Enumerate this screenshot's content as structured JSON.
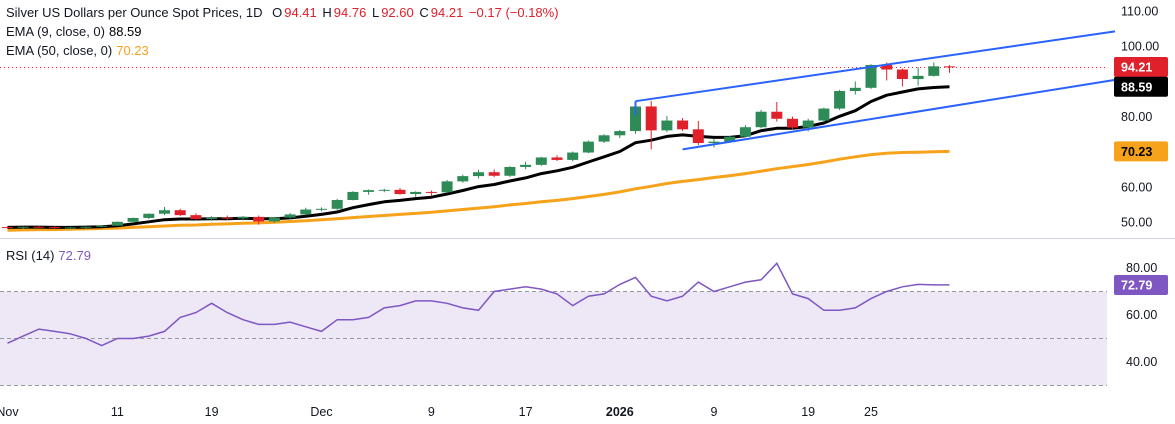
{
  "legend": {
    "title": "Silver US Dollars per Ounce Spot Prices, 1D",
    "o_label": "O",
    "o": "94.41",
    "h_label": "H",
    "h": "94.76",
    "l_label": "L",
    "l": "92.60",
    "c_label": "C",
    "c": "94.21",
    "change": "−0.17 (−0.18%)",
    "ema9_label": "EMA (9, close, 0)",
    "ema9_value": "88.59",
    "ema50_label": "EMA (50, close, 0)",
    "ema50_value": "70.23",
    "rsi_label": "RSI (14)",
    "rsi_value": "72.79"
  },
  "colors": {
    "up": "#26a69a",
    "up_candle": "#2e8b57",
    "down": "#e0202a",
    "ema9": "#000000",
    "ema50": "#f7a21b",
    "channel": "#2962ff",
    "rsi": "#7e57c2",
    "rsi_band": "#ede7f6"
  },
  "price_tags": {
    "last": "94.21",
    "ema9": "88.59",
    "ema50": "70.23"
  },
  "chart_data": {
    "type": "candlestick",
    "title": "Silver US Dollars per Ounce Spot Prices, 1D",
    "price_axis": {
      "ticks": [
        "110.00",
        "100.00",
        "80.00",
        "70.00",
        "60.00",
        "50.00"
      ],
      "tick_values": [
        110,
        100,
        80,
        70,
        60,
        50
      ]
    },
    "rsi_axis": {
      "ticks": [
        "80.00",
        "60.00",
        "40.00"
      ],
      "tick_values": [
        80,
        60,
        40
      ],
      "bands": [
        70,
        50,
        30
      ]
    },
    "x_axis": {
      "labels": [
        "Nov",
        "11",
        "19",
        "Dec",
        "9",
        "17",
        "2026",
        "9",
        "19",
        "25"
      ],
      "label_index": [
        0,
        7,
        13,
        20,
        27,
        33,
        39,
        45,
        51,
        55
      ]
    },
    "candles": [
      [
        48.7,
        48.9,
        48.3,
        48.6
      ],
      [
        48.6,
        48.9,
        48.3,
        48.8
      ],
      [
        48.8,
        49.0,
        48.5,
        48.7
      ],
      [
        48.7,
        48.9,
        48.3,
        48.5
      ],
      [
        48.5,
        48.8,
        48.2,
        48.6
      ],
      [
        48.6,
        48.9,
        48.3,
        48.8
      ],
      [
        48.8,
        49.3,
        48.6,
        49.1
      ],
      [
        49.1,
        50.3,
        49.0,
        50.2
      ],
      [
        50.2,
        51.4,
        49.8,
        51.3
      ],
      [
        51.3,
        52.6,
        51.0,
        52.5
      ],
      [
        52.5,
        54.4,
        52.1,
        53.5
      ],
      [
        53.5,
        53.9,
        51.9,
        52.1
      ],
      [
        52.1,
        52.6,
        50.8,
        51.0
      ],
      [
        51.0,
        51.8,
        50.5,
        51.4
      ],
      [
        51.4,
        52.0,
        50.8,
        51.2
      ],
      [
        51.2,
        51.8,
        50.6,
        51.6
      ],
      [
        51.6,
        52.0,
        49.4,
        50.3
      ],
      [
        50.3,
        51.6,
        49.9,
        51.4
      ],
      [
        51.4,
        52.7,
        51.1,
        52.3
      ],
      [
        52.3,
        54.2,
        52.1,
        53.7
      ],
      [
        53.7,
        54.3,
        53.2,
        53.9
      ],
      [
        53.9,
        56.7,
        53.6,
        56.4
      ],
      [
        56.4,
        58.9,
        56.3,
        58.7
      ],
      [
        58.7,
        59.4,
        57.9,
        59.2
      ],
      [
        59.2,
        59.6,
        58.6,
        59.3
      ],
      [
        59.3,
        59.8,
        57.9,
        58.1
      ],
      [
        58.1,
        58.9,
        57.3,
        58.7
      ],
      [
        58.7,
        59.1,
        57.5,
        58.6
      ],
      [
        58.6,
        62.1,
        58.4,
        61.7
      ],
      [
        61.7,
        63.6,
        61.3,
        63.2
      ],
      [
        63.2,
        65.0,
        62.5,
        64.3
      ],
      [
        64.3,
        65.1,
        62.9,
        63.3
      ],
      [
        63.3,
        66.0,
        63.0,
        65.8
      ],
      [
        65.8,
        67.3,
        65.2,
        66.4
      ],
      [
        66.4,
        68.7,
        66.1,
        68.5
      ],
      [
        68.5,
        69.1,
        67.5,
        67.8
      ],
      [
        67.8,
        70.2,
        67.4,
        69.9
      ],
      [
        69.9,
        73.3,
        69.7,
        73.0
      ],
      [
        73.0,
        75.1,
        72.6,
        74.8
      ],
      [
        74.8,
        76.3,
        74.0,
        76.0
      ],
      [
        76.0,
        83.8,
        75.2,
        83.0
      ],
      [
        83.0,
        84.6,
        70.8,
        76.2
      ],
      [
        76.2,
        80.3,
        75.7,
        79.0
      ],
      [
        79.0,
        79.7,
        76.0,
        76.5
      ],
      [
        76.5,
        78.9,
        72.0,
        72.6
      ],
      [
        72.6,
        73.8,
        71.3,
        73.0
      ],
      [
        73.0,
        74.6,
        72.7,
        74.4
      ],
      [
        74.4,
        77.7,
        74.2,
        77.1
      ],
      [
        77.1,
        82.0,
        76.8,
        81.5
      ],
      [
        81.5,
        84.3,
        78.7,
        79.5
      ],
      [
        79.5,
        80.1,
        76.4,
        77.0
      ],
      [
        77.0,
        79.5,
        75.9,
        79.0
      ],
      [
        79.0,
        82.7,
        78.5,
        82.4
      ],
      [
        82.4,
        87.7,
        82.0,
        87.4
      ],
      [
        87.4,
        90.1,
        86.4,
        88.3
      ],
      [
        88.3,
        95.0,
        88.0,
        94.8
      ],
      [
        94.8,
        95.5,
        90.4,
        93.5
      ],
      [
        93.5,
        93.8,
        88.7,
        90.8
      ],
      [
        90.8,
        94.2,
        88.9,
        91.7
      ],
      [
        91.7,
        95.5,
        91.5,
        94.41
      ],
      [
        94.41,
        94.76,
        92.6,
        94.21
      ]
    ],
    "ema9": [
      48.6,
      48.7,
      48.7,
      48.6,
      48.6,
      48.7,
      48.8,
      49.1,
      49.6,
      50.2,
      50.8,
      51.0,
      51.0,
      51.1,
      51.1,
      51.2,
      51.1,
      51.1,
      51.3,
      51.8,
      52.3,
      53.0,
      54.2,
      55.1,
      55.9,
      56.3,
      56.8,
      57.2,
      58.1,
      59.1,
      60.2,
      60.8,
      61.8,
      62.7,
      63.9,
      64.7,
      65.7,
      67.2,
      68.7,
      70.2,
      72.7,
      73.4,
      74.5,
      74.9,
      74.5,
      74.2,
      74.2,
      74.7,
      76.1,
      76.8,
      76.8,
      77.3,
      78.3,
      80.2,
      81.8,
      84.4,
      86.2,
      87.1,
      88.0,
      88.4,
      88.59
    ],
    "ema50": [
      47.8,
      47.9,
      48.0,
      48.0,
      48.1,
      48.2,
      48.3,
      48.4,
      48.6,
      48.8,
      49.0,
      49.2,
      49.3,
      49.5,
      49.6,
      49.8,
      49.9,
      50.1,
      50.3,
      50.5,
      50.8,
      51.1,
      51.4,
      51.7,
      52.0,
      52.3,
      52.6,
      52.9,
      53.3,
      53.7,
      54.1,
      54.5,
      55.0,
      55.4,
      55.9,
      56.3,
      56.8,
      57.4,
      58.0,
      58.7,
      59.6,
      60.3,
      61.1,
      61.7,
      62.2,
      62.8,
      63.3,
      63.9,
      64.6,
      65.3,
      65.9,
      66.5,
      67.2,
      68.0,
      68.7,
      69.3,
      69.7,
      69.9,
      70.0,
      70.1,
      70.23
    ],
    "rsi": [
      48,
      51,
      54,
      53,
      52,
      50,
      47,
      50,
      50,
      51,
      53,
      59,
      61,
      65,
      61,
      58,
      56,
      56,
      57,
      55,
      53,
      58,
      58,
      59,
      63,
      64,
      66,
      66,
      65,
      63,
      62,
      70,
      71,
      72,
      71,
      69,
      64,
      68,
      69,
      73,
      76,
      68,
      66,
      68,
      74,
      70,
      72,
      74,
      75,
      82,
      69,
      67,
      62,
      62,
      63,
      67,
      70,
      72,
      73,
      72.8,
      72.8
    ],
    "channel": {
      "upper": [
        [
          40,
          84.5
        ],
        [
          60,
          97.5
        ]
      ],
      "lower": [
        [
          43,
          70.8
        ],
        [
          60,
          83.0
        ]
      ]
    }
  }
}
